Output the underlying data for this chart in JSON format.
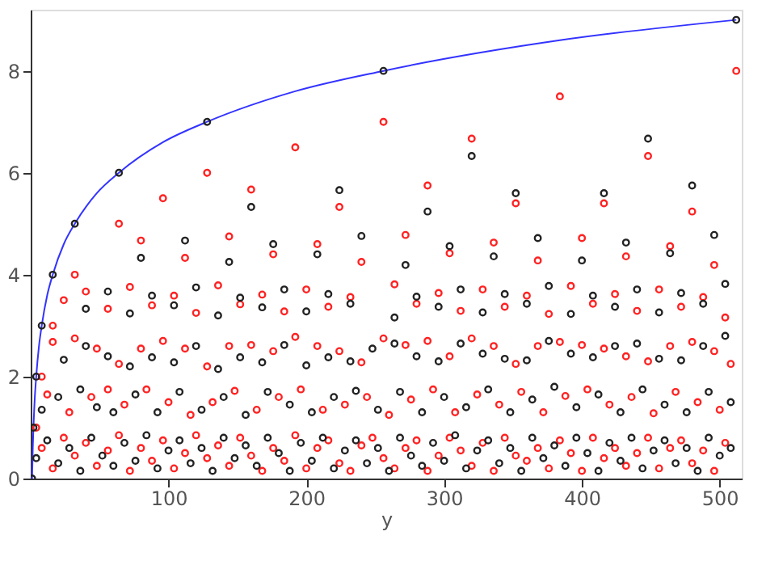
{
  "chart_data": {
    "type": "scatter",
    "xlabel": "y",
    "xlim": [
      0,
      516
    ],
    "ylim": [
      0,
      9.2
    ],
    "xticks": [
      100,
      200,
      300,
      400,
      500
    ],
    "yticks": [
      0,
      2,
      4,
      6,
      8
    ],
    "grid": false,
    "marker": "circle",
    "series": [
      {
        "type": "line",
        "marker": "none",
        "line_style": "solid",
        "color": "#3333ff",
        "x": [
          1,
          1.5,
          2,
          3,
          4,
          6,
          8,
          12,
          16,
          24,
          32,
          48,
          64,
          96,
          128,
          192,
          256,
          384,
          512
        ],
        "values": [
          0,
          0.6,
          1,
          1.6,
          2,
          2.6,
          3,
          3.6,
          4,
          4.6,
          5,
          5.6,
          6,
          6.6,
          7,
          7.6,
          8,
          8.6,
          9
        ]
      },
      {
        "color": "#ff2222",
        "x": [
          4,
          8,
          16,
          32,
          64,
          128,
          256,
          512,
          384,
          192,
          96,
          24,
          80,
          112,
          144,
          160,
          176,
          208,
          224,
          240,
          288,
          320,
          352,
          416,
          448,
          480,
          272,
          304,
          336,
          368,
          400,
          432,
          464,
          496,
          40,
          56,
          72,
          88,
          104,
          120,
          136,
          152,
          168,
          184,
          200,
          216,
          232,
          264,
          280,
          296,
          312,
          328,
          344,
          360,
          376,
          392,
          408,
          424,
          440,
          456,
          472,
          488,
          504,
          16,
          32,
          48,
          64,
          80,
          96,
          112,
          128,
          144,
          160,
          176,
          192,
          208,
          224,
          240,
          256,
          272,
          288,
          304,
          320,
          336,
          352,
          368,
          384,
          400,
          416,
          432,
          448,
          464,
          480,
          496,
          508,
          12,
          28,
          44,
          56,
          68,
          84,
          100,
          116,
          132,
          148,
          164,
          180,
          196,
          212,
          228,
          244,
          260,
          276,
          292,
          308,
          324,
          340,
          356,
          372,
          388,
          404,
          420,
          436,
          452,
          468,
          484,
          500,
          8,
          16,
          24,
          32,
          40,
          48,
          56,
          64,
          72,
          80,
          88,
          96,
          104,
          112,
          120,
          128,
          136,
          144,
          152,
          160,
          168,
          176,
          184,
          192,
          200,
          208,
          216,
          224,
          232,
          240,
          248,
          256,
          264,
          272,
          280,
          288,
          296,
          304,
          312,
          320,
          328,
          336,
          344,
          352,
          360,
          368,
          376,
          384,
          392,
          400,
          408,
          416,
          424,
          432,
          440,
          448,
          456,
          464,
          472,
          480,
          488,
          496,
          504
        ],
        "values": [
          1,
          2,
          3,
          4,
          5,
          6,
          7,
          8,
          7.5,
          6.5,
          5.5,
          3.5,
          4.67,
          4.33,
          4.75,
          5.67,
          4.4,
          4.6,
          5.33,
          4.25,
          5.75,
          6.67,
          5.4,
          5.4,
          6.33,
          5.24,
          4.78,
          4.42,
          4.63,
          4.28,
          4.72,
          4.36,
          4.56,
          4.19,
          3.67,
          3.33,
          3.76,
          3.4,
          3.59,
          3.25,
          3.79,
          3.42,
          3.61,
          3.28,
          3.71,
          3.37,
          3.56,
          3.81,
          3.43,
          3.64,
          3.29,
          3.71,
          3.37,
          3.59,
          3.23,
          3.78,
          3.43,
          3.62,
          3.29,
          3.71,
          3.37,
          3.56,
          3.16,
          2.68,
          2.75,
          2.55,
          2.25,
          2.55,
          2.7,
          2.55,
          2.2,
          2.6,
          2.62,
          2.5,
          2.78,
          2.6,
          2.5,
          2.28,
          2.75,
          2.62,
          2.7,
          2.4,
          2.75,
          2.6,
          2.25,
          2.6,
          2.68,
          2.62,
          2.55,
          2.4,
          2.3,
          2.6,
          2.68,
          2.5,
          2.25,
          1.65,
          1.3,
          1.6,
          1.75,
          1.45,
          1.75,
          1.5,
          1.25,
          1.5,
          1.72,
          1.35,
          1.6,
          1.75,
          1.35,
          1.45,
          1.6,
          1.25,
          1.55,
          1.75,
          1.3,
          1.65,
          1.45,
          1.7,
          1.3,
          1.62,
          1.75,
          1.45,
          1.6,
          1.28,
          1.7,
          1.5,
          1.35,
          0.6,
          0.2,
          0.8,
          0.45,
          0.7,
          0.25,
          0.55,
          0.85,
          0.15,
          0.6,
          0.35,
          0.75,
          0.2,
          0.5,
          0.85,
          0.4,
          0.65,
          0.25,
          0.8,
          0.45,
          0.15,
          0.6,
          0.35,
          0.85,
          0.2,
          0.6,
          0.75,
          0.3,
          0.15,
          0.65,
          0.8,
          0.4,
          0.2,
          0.6,
          0.75,
          0.15,
          0.45,
          0.8,
          0.55,
          0.25,
          0.7,
          0.15,
          0.8,
          0.45,
          0.35,
          0.6,
          0.2,
          0.75,
          0.5,
          0.15,
          0.8,
          0.4,
          0.6,
          0.25,
          0.5,
          0.8,
          0.2,
          0.6,
          0.75,
          0.3,
          0.55,
          0.15,
          0.7
        ]
      },
      {
        "color": "#222222",
        "x": [
          1,
          2,
          4,
          8,
          16,
          32,
          64,
          128,
          256,
          512,
          80,
          112,
          144,
          160,
          176,
          208,
          224,
          240,
          288,
          320,
          352,
          416,
          448,
          480,
          272,
          304,
          336,
          368,
          400,
          432,
          464,
          496,
          40,
          56,
          72,
          88,
          104,
          120,
          136,
          152,
          168,
          184,
          200,
          216,
          232,
          264,
          280,
          296,
          312,
          328,
          344,
          360,
          376,
          392,
          408,
          424,
          440,
          456,
          472,
          488,
          504,
          24,
          40,
          56,
          72,
          88,
          104,
          120,
          136,
          152,
          168,
          184,
          200,
          216,
          232,
          248,
          264,
          280,
          296,
          312,
          328,
          344,
          360,
          376,
          392,
          408,
          424,
          440,
          456,
          472,
          488,
          504,
          8,
          20,
          36,
          48,
          60,
          76,
          92,
          108,
          124,
          140,
          156,
          172,
          188,
          204,
          220,
          236,
          252,
          268,
          284,
          300,
          316,
          332,
          348,
          364,
          380,
          396,
          412,
          428,
          444,
          460,
          476,
          492,
          508,
          4,
          12,
          20,
          28,
          36,
          44,
          52,
          60,
          68,
          76,
          84,
          92,
          100,
          108,
          116,
          124,
          132,
          140,
          148,
          156,
          164,
          172,
          180,
          188,
          196,
          204,
          212,
          220,
          228,
          236,
          244,
          252,
          260,
          268,
          276,
          284,
          292,
          300,
          308,
          316,
          324,
          332,
          340,
          348,
          356,
          364,
          372,
          380,
          388,
          396,
          404,
          412,
          420,
          428,
          436,
          444,
          452,
          460,
          468,
          476,
          484,
          492,
          500,
          508
        ],
        "values": [
          0,
          1,
          2,
          3,
          4,
          5,
          6,
          7,
          8,
          9,
          4.33,
          4.67,
          4.25,
          5.33,
          4.6,
          4.4,
          5.66,
          4.76,
          5.24,
          6.33,
          5.6,
          5.6,
          6.67,
          5.75,
          4.19,
          4.56,
          4.36,
          4.72,
          4.28,
          4.63,
          4.42,
          4.78,
          3.33,
          3.67,
          3.24,
          3.59,
          3.4,
          3.75,
          3.2,
          3.55,
          3.36,
          3.71,
          3.28,
          3.62,
          3.43,
          3.16,
          3.57,
          3.37,
          3.71,
          3.26,
          3.62,
          3.43,
          3.78,
          3.23,
          3.59,
          3.37,
          3.71,
          3.26,
          3.64,
          3.43,
          3.82,
          2.33,
          2.6,
          2.4,
          2.2,
          2.38,
          2.28,
          2.6,
          2.15,
          2.38,
          2.28,
          2.62,
          2.22,
          2.38,
          2.3,
          2.55,
          2.65,
          2.4,
          2.3,
          2.65,
          2.45,
          2.35,
          2.32,
          2.7,
          2.45,
          2.38,
          2.6,
          2.65,
          2.35,
          2.32,
          2.6,
          2.8,
          1.35,
          1.6,
          1.75,
          1.4,
          1.3,
          1.65,
          1.3,
          1.7,
          1.35,
          1.6,
          1.25,
          1.7,
          1.45,
          1.3,
          1.6,
          1.72,
          1.35,
          1.7,
          1.3,
          1.6,
          1.4,
          1.75,
          1.3,
          1.55,
          1.8,
          1.4,
          1.65,
          1.3,
          1.75,
          1.45,
          1.3,
          1.7,
          1.5,
          0.4,
          0.75,
          0.3,
          0.6,
          0.15,
          0.8,
          0.45,
          0.25,
          0.7,
          0.35,
          0.85,
          0.2,
          0.55,
          0.75,
          0.3,
          0.6,
          0.15,
          0.8,
          0.4,
          0.65,
          0.25,
          0.8,
          0.5,
          0.15,
          0.7,
          0.35,
          0.8,
          0.2,
          0.55,
          0.75,
          0.3,
          0.6,
          0.15,
          0.8,
          0.45,
          0.25,
          0.7,
          0.35,
          0.85,
          0.2,
          0.55,
          0.75,
          0.3,
          0.6,
          0.15,
          0.8,
          0.4,
          0.65,
          0.25,
          0.8,
          0.5,
          0.15,
          0.7,
          0.35,
          0.8,
          0.2,
          0.55,
          0.75,
          0.3,
          0.6,
          0.15,
          0.8,
          0.45,
          0.6
        ]
      }
    ]
  }
}
